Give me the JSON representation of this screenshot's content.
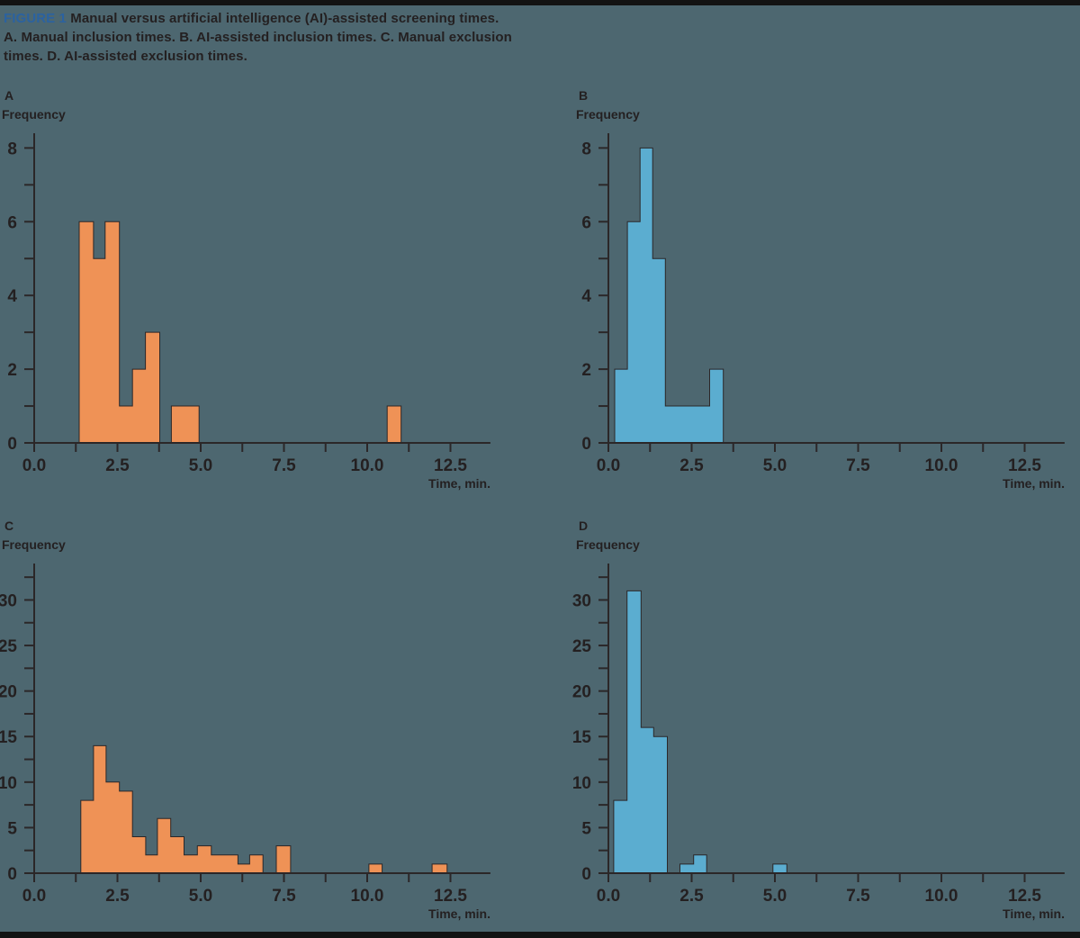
{
  "page": {
    "background_color": "#4D6770",
    "border_strip_color": "#131313",
    "text_color": "#242021",
    "axis_color": "#2B2728",
    "bar_outline_color": "#2B2728",
    "orange": "#EF9256",
    "blue": "#5BADD0",
    "figure_label_color": "#2B62A0"
  },
  "title": {
    "figure_label": "FIGURE 1",
    "line1": " Manual versus artificial intelligence (AI)-assisted screening times.",
    "line2": "A. Manual inclusion times. B. AI-assisted inclusion times. C. Manual exclusion",
    "line3": "times. D. AI-assisted exclusion times."
  },
  "chart_data": [
    {
      "id": "a",
      "type": "bar",
      "panel_label": "A",
      "description": "Manual inclusion times",
      "ylabel": "Frequency",
      "xlabel": "Time, min.",
      "color": "#EF9256",
      "xlim": [
        0,
        13.7
      ],
      "ylim": [
        0,
        8.4
      ],
      "x_tick_step": 1.25,
      "x_tick_max": 12.5,
      "x_tick_labels": [
        "0.0",
        "2.5",
        "5.0",
        "7.5",
        "10.0",
        "12.5"
      ],
      "y_tick_step": 1,
      "y_tick_max": 8,
      "grid": false,
      "bars": [
        [
          1.35,
          1.78,
          6
        ],
        [
          1.78,
          2.13,
          5
        ],
        [
          2.13,
          2.56,
          6
        ],
        [
          2.56,
          2.95,
          1
        ],
        [
          2.95,
          3.34,
          2
        ],
        [
          3.34,
          3.77,
          3
        ],
        [
          4.12,
          4.95,
          1
        ],
        [
          10.6,
          11.02,
          1
        ]
      ]
    },
    {
      "id": "b",
      "type": "bar",
      "panel_label": "B",
      "description": "AI-assisted inclusion times",
      "ylabel": "Frequency",
      "xlabel": "Time, min.",
      "color": "#5BADD0",
      "xlim": [
        0,
        13.7
      ],
      "ylim": [
        0,
        8.4
      ],
      "x_tick_step": 1.25,
      "x_tick_max": 12.5,
      "x_tick_labels": [
        "0.0",
        "2.5",
        "5.0",
        "7.5",
        "10.0",
        "12.5"
      ],
      "y_tick_step": 1,
      "y_tick_max": 8,
      "grid": false,
      "bars": [
        [
          0.19,
          0.57,
          2
        ],
        [
          0.57,
          0.95,
          6
        ],
        [
          0.95,
          1.33,
          8
        ],
        [
          1.33,
          1.71,
          5
        ],
        [
          1.71,
          3.04,
          1
        ],
        [
          3.04,
          3.45,
          2
        ]
      ]
    },
    {
      "id": "c",
      "type": "bar",
      "panel_label": "C",
      "description": "Manual exclusion times",
      "ylabel": "Frequency",
      "xlabel": "Time, min.",
      "color": "#EF9256",
      "xlim": [
        0,
        13.7
      ],
      "ylim": [
        0,
        34
      ],
      "x_tick_step": 1.25,
      "x_tick_max": 12.5,
      "x_tick_labels": [
        "0.0",
        "2.5",
        "5.0",
        "7.5",
        "10.0",
        "12.5"
      ],
      "y_tick_step": 2.5,
      "y_tick_max": 32.5,
      "grid": false,
      "bars": [
        [
          1.4,
          1.78,
          8
        ],
        [
          1.78,
          2.16,
          14
        ],
        [
          2.16,
          2.56,
          10
        ],
        [
          2.56,
          2.95,
          9
        ],
        [
          2.95,
          3.35,
          4
        ],
        [
          3.35,
          3.7,
          2
        ],
        [
          3.7,
          4.1,
          6
        ],
        [
          4.1,
          4.5,
          4
        ],
        [
          4.5,
          4.9,
          2
        ],
        [
          4.9,
          5.32,
          3
        ],
        [
          5.32,
          6.12,
          2
        ],
        [
          6.12,
          6.47,
          1
        ],
        [
          6.47,
          6.87,
          2
        ],
        [
          7.27,
          7.7,
          3
        ],
        [
          10.05,
          10.45,
          1
        ],
        [
          11.95,
          12.4,
          1
        ]
      ]
    },
    {
      "id": "d",
      "type": "bar",
      "panel_label": "D",
      "description": "AI-assisted exclusion times",
      "ylabel": "Frequency",
      "xlabel": "Time, min.",
      "color": "#5BADD0",
      "xlim": [
        0,
        13.7
      ],
      "ylim": [
        0,
        34
      ],
      "x_tick_step": 1.25,
      "x_tick_max": 12.5,
      "x_tick_labels": [
        "0.0",
        "2.5",
        "5.0",
        "7.5",
        "10.0",
        "12.5"
      ],
      "y_tick_step": 2.5,
      "y_tick_max": 32.5,
      "grid": false,
      "bars": [
        [
          0.16,
          0.56,
          8
        ],
        [
          0.56,
          0.98,
          31
        ],
        [
          0.98,
          1.36,
          16
        ],
        [
          1.36,
          1.77,
          15
        ],
        [
          2.15,
          2.56,
          1
        ],
        [
          2.56,
          2.95,
          2
        ],
        [
          4.94,
          5.36,
          1
        ]
      ]
    }
  ]
}
